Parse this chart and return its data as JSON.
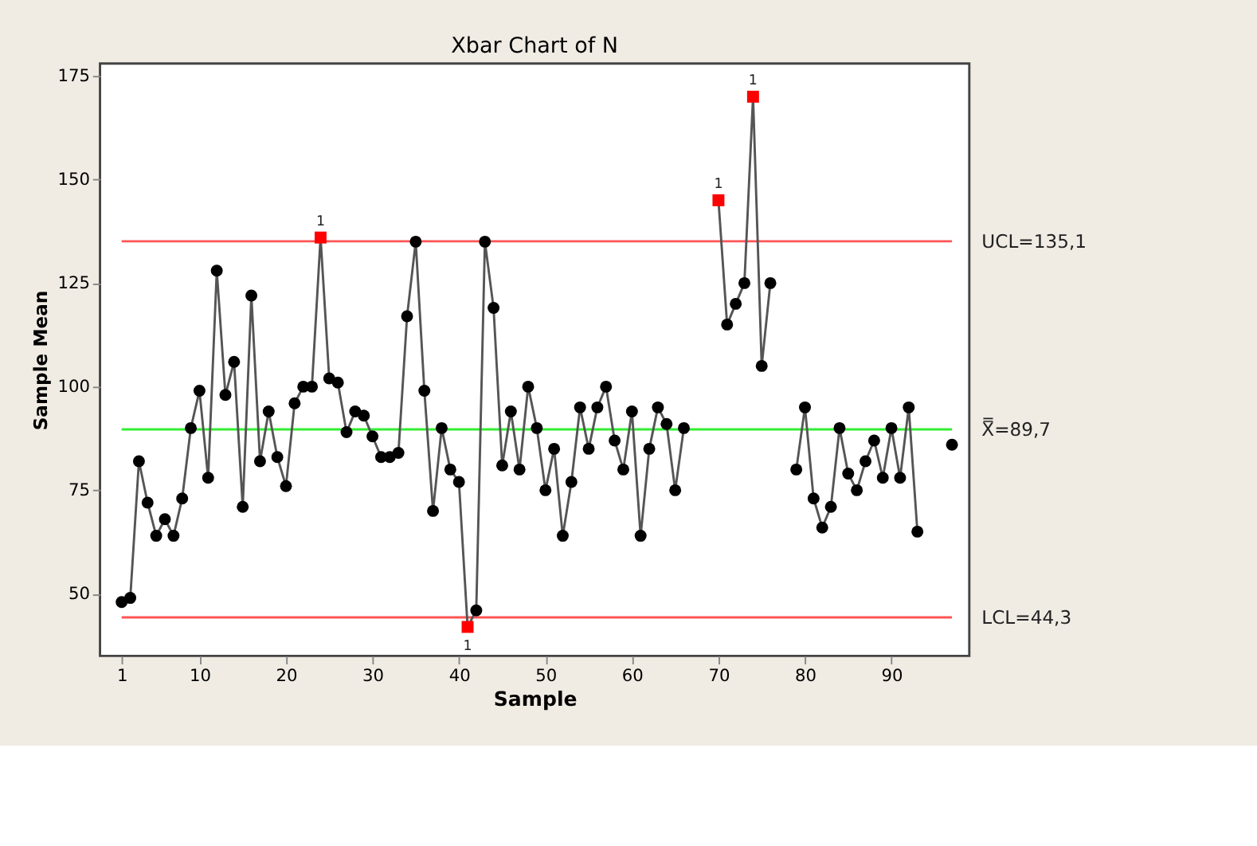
{
  "chart_data": {
    "type": "line",
    "title": "Xbar Chart of N",
    "xlabel": "Sample",
    "ylabel": "Sample Mean",
    "x": [
      1,
      2,
      3,
      4,
      5,
      6,
      7,
      8,
      9,
      10,
      11,
      12,
      13,
      14,
      15,
      16,
      17,
      18,
      19,
      20,
      21,
      22,
      23,
      24,
      25,
      26,
      27,
      28,
      29,
      30,
      31,
      32,
      33,
      34,
      35,
      36,
      37,
      38,
      39,
      40,
      41,
      42,
      43,
      44,
      45,
      46,
      47,
      48,
      49,
      50,
      51,
      52,
      53,
      54,
      55,
      56,
      57,
      58,
      59,
      60,
      61,
      62,
      63,
      64,
      65,
      66,
      67,
      68,
      69,
      70,
      71,
      72,
      73,
      74,
      75,
      76,
      77,
      78,
      79,
      80,
      81,
      82,
      83,
      84,
      85,
      86,
      87,
      88,
      89,
      90,
      91,
      92,
      93,
      94,
      95,
      96,
      97
    ],
    "series": [
      {
        "color": "#555555",
        "marker": "none",
        "values": [
          48,
          49,
          82,
          72,
          64,
          68,
          64,
          73,
          90,
          99,
          78,
          128,
          98,
          106,
          71,
          122,
          82,
          94,
          83,
          76,
          96,
          100,
          100,
          136,
          102,
          101,
          89,
          94,
          93,
          88,
          83,
          83,
          84,
          117,
          135,
          99,
          70,
          90,
          80,
          77,
          42,
          46,
          135,
          119,
          81,
          94,
          80,
          100,
          90,
          75,
          85,
          64,
          77,
          95,
          85,
          95,
          100,
          87,
          80,
          94,
          64,
          85,
          95,
          91,
          75,
          90,
          null,
          null,
          null,
          145,
          115,
          120,
          125,
          170,
          105,
          125,
          null,
          null,
          80,
          95,
          73,
          66,
          71,
          90,
          79,
          75,
          82,
          87,
          78,
          90,
          78,
          95,
          65,
          null,
          null,
          null,
          null
        ]
      },
      {
        "type": "scatter",
        "color": "#000000",
        "marker": "circle",
        "values": [
          48,
          49,
          82,
          72,
          64,
          68,
          64,
          73,
          90,
          99,
          78,
          128,
          98,
          106,
          71,
          122,
          82,
          94,
          83,
          76,
          96,
          100,
          100,
          null,
          102,
          101,
          89,
          94,
          93,
          88,
          83,
          83,
          84,
          117,
          135,
          99,
          70,
          90,
          80,
          77,
          null,
          46,
          135,
          119,
          81,
          94,
          80,
          100,
          90,
          75,
          85,
          64,
          77,
          95,
          85,
          95,
          100,
          87,
          80,
          94,
          64,
          85,
          95,
          91,
          75,
          90,
          null,
          null,
          null,
          null,
          115,
          120,
          125,
          null,
          105,
          125,
          null,
          null,
          80,
          95,
          73,
          66,
          71,
          90,
          79,
          75,
          82,
          87,
          78,
          90,
          78,
          95,
          65,
          null,
          null,
          null,
          86
        ]
      },
      {
        "type": "scatter",
        "color": "#ff0000",
        "marker": "square",
        "values": [
          null,
          null,
          null,
          null,
          null,
          null,
          null,
          null,
          null,
          null,
          null,
          null,
          null,
          null,
          null,
          null,
          null,
          null,
          null,
          null,
          null,
          null,
          null,
          136,
          null,
          null,
          null,
          null,
          null,
          null,
          null,
          null,
          null,
          null,
          null,
          null,
          null,
          null,
          null,
          null,
          42,
          null,
          null,
          null,
          null,
          null,
          null,
          null,
          null,
          null,
          null,
          null,
          null,
          null,
          null,
          null,
          null,
          null,
          null,
          null,
          null,
          null,
          null,
          null,
          null,
          null,
          null,
          null,
          null,
          145,
          null,
          null,
          null,
          170,
          null,
          null,
          null,
          null,
          null,
          null,
          null,
          null,
          null,
          null,
          null,
          null,
          null,
          null,
          null,
          null,
          null,
          null,
          null,
          null,
          null,
          null,
          null
        ]
      }
    ],
    "ref_lines": [
      {
        "axis": "y",
        "value": 135.1,
        "label": "UCL=135,1",
        "color": "#ff5555"
      },
      {
        "axis": "y",
        "value": 89.7,
        "label": "X̿=89,7",
        "color": "#33ee33"
      },
      {
        "axis": "y",
        "value": 44.3,
        "label": "LCL=44,3",
        "color": "#ff5555"
      }
    ],
    "annotations": [
      {
        "text": "1",
        "x": 24,
        "y": 136
      },
      {
        "text": "1",
        "x": 41,
        "y": 42
      },
      {
        "text": "1",
        "x": 70,
        "y": 145
      },
      {
        "text": "1",
        "x": 74,
        "y": 170
      }
    ],
    "xlim": [
      -1.5,
      99
    ],
    "ylim": [
      35,
      178
    ],
    "xticks": [
      1,
      10,
      20,
      30,
      40,
      50,
      60,
      70,
      80,
      90
    ],
    "yticks": [
      50,
      75,
      100,
      125,
      150,
      175
    ],
    "grid": false,
    "line_style": "solid"
  }
}
